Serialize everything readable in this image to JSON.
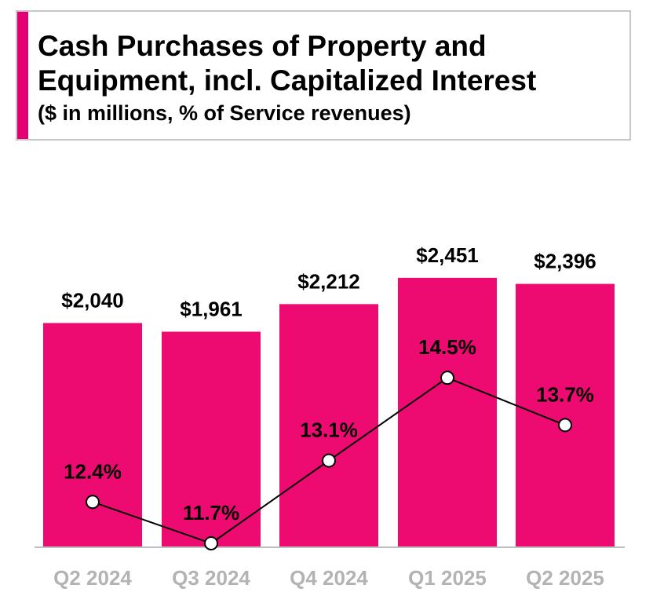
{
  "title": {
    "line1": "Cash Purchases of Property and",
    "line2": "Equipment, incl. Capitalized Interest",
    "subtitle": "($ in millions, % of Service revenues)"
  },
  "colors": {
    "accent": "#e20074",
    "bar": "#ee0b71",
    "axis_label": "#b3b3b3",
    "line": "#000000"
  },
  "chart_data": {
    "type": "bar",
    "categories": [
      "Q2 2024",
      "Q3 2024",
      "Q4 2024",
      "Q1 2025",
      "Q2 2025"
    ],
    "series": [
      {
        "values": [
          2040,
          1961,
          2212,
          2451,
          2396
        ],
        "labels": [
          "$2,040",
          "$1,961",
          "$2,212",
          "$2,451",
          "$2,396"
        ]
      },
      {
        "type": "line",
        "values": [
          12.4,
          11.7,
          13.1,
          14.5,
          13.7
        ],
        "labels": [
          "12.4%",
          "11.7%",
          "13.1%",
          "14.5%",
          "13.7%"
        ]
      }
    ],
    "ylim": [
      0,
      2800
    ],
    "grid": false,
    "legend": "none"
  }
}
